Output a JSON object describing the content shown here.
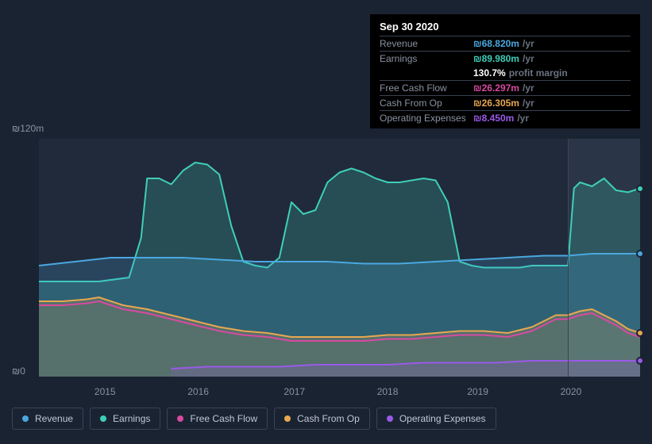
{
  "tooltip": {
    "date": "Sep 30 2020",
    "rows": [
      {
        "label": "Revenue",
        "value": "₪68.820m",
        "unit": "/yr",
        "color": "#4aa8e0",
        "border": true
      },
      {
        "label": "Earnings",
        "value": "₪89.980m",
        "unit": "/yr",
        "color": "#3ecfb8",
        "border": true
      },
      {
        "label": "",
        "value": "130.7%",
        "unit": "profit margin",
        "color": "#ffffff",
        "border": false
      },
      {
        "label": "Free Cash Flow",
        "value": "₪26.297m",
        "unit": "/yr",
        "color": "#d84aa0",
        "border": true
      },
      {
        "label": "Cash From Op",
        "value": "₪26.305m",
        "unit": "/yr",
        "color": "#e8a850",
        "border": true
      },
      {
        "label": "Operating Expenses",
        "value": "₪8.450m",
        "unit": "/yr",
        "color": "#9a5ae8",
        "border": true
      }
    ]
  },
  "chart": {
    "type": "area",
    "background_color": "#212a3a",
    "future_band_color": "#2a3648",
    "future_band_start_pct": 88,
    "y_axis": {
      "min": 0,
      "max": 120,
      "top_label": "₪120m",
      "bottom_label": "₪0",
      "label_color": "#8a92a2",
      "label_fontsize": 12
    },
    "x_axis": {
      "ticks": [
        {
          "label": "2015",
          "pos_pct": 11
        },
        {
          "label": "2016",
          "pos_pct": 26.5
        },
        {
          "label": "2017",
          "pos_pct": 42.5
        },
        {
          "label": "2018",
          "pos_pct": 58
        },
        {
          "label": "2019",
          "pos_pct": 73
        },
        {
          "label": "2020",
          "pos_pct": 88.5
        }
      ],
      "label_color": "#8a92a2",
      "label_fontsize": 12
    },
    "series": [
      {
        "name": "Earnings",
        "color": "#3ecfb8",
        "fill_opacity": 0.22,
        "line_width": 2,
        "data": [
          [
            0,
            48
          ],
          [
            5,
            48
          ],
          [
            10,
            48
          ],
          [
            15,
            50
          ],
          [
            17,
            70
          ],
          [
            18,
            100
          ],
          [
            20,
            100
          ],
          [
            22,
            97
          ],
          [
            24,
            104
          ],
          [
            26,
            108
          ],
          [
            28,
            107
          ],
          [
            30,
            102
          ],
          [
            32,
            76
          ],
          [
            34,
            58
          ],
          [
            36,
            56
          ],
          [
            38,
            55
          ],
          [
            40,
            60
          ],
          [
            42,
            88
          ],
          [
            44,
            82
          ],
          [
            46,
            84
          ],
          [
            48,
            98
          ],
          [
            50,
            103
          ],
          [
            52,
            105
          ],
          [
            54,
            103
          ],
          [
            56,
            100
          ],
          [
            58,
            98
          ],
          [
            60,
            98
          ],
          [
            62,
            99
          ],
          [
            64,
            100
          ],
          [
            66,
            99
          ],
          [
            68,
            88
          ],
          [
            70,
            58
          ],
          [
            72,
            56
          ],
          [
            74,
            55
          ],
          [
            76,
            55
          ],
          [
            78,
            55
          ],
          [
            80,
            55
          ],
          [
            82,
            56
          ],
          [
            84,
            56
          ],
          [
            86,
            56
          ],
          [
            88,
            56
          ],
          [
            89,
            95
          ],
          [
            90,
            98
          ],
          [
            92,
            96
          ],
          [
            94,
            100
          ],
          [
            96,
            94
          ],
          [
            98,
            93
          ],
          [
            100,
            95
          ]
        ],
        "marker_end": {
          "x_pct": 100,
          "y_val": 95
        }
      },
      {
        "name": "Revenue",
        "color": "#4aa8e0",
        "fill_opacity": 0.22,
        "line_width": 2,
        "data": [
          [
            0,
            56
          ],
          [
            6,
            58
          ],
          [
            12,
            60
          ],
          [
            18,
            60
          ],
          [
            24,
            60
          ],
          [
            30,
            59
          ],
          [
            36,
            58
          ],
          [
            42,
            58
          ],
          [
            48,
            58
          ],
          [
            54,
            57
          ],
          [
            60,
            57
          ],
          [
            66,
            58
          ],
          [
            72,
            59
          ],
          [
            78,
            60
          ],
          [
            84,
            61
          ],
          [
            88,
            61
          ],
          [
            92,
            62
          ],
          [
            96,
            62
          ],
          [
            100,
            62
          ]
        ],
        "marker_end": {
          "x_pct": 100,
          "y_val": 62
        }
      },
      {
        "name": "Cash From Op",
        "color": "#e8a850",
        "fill_opacity": 0.22,
        "line_width": 2,
        "data": [
          [
            0,
            38
          ],
          [
            4,
            38
          ],
          [
            8,
            39
          ],
          [
            10,
            40
          ],
          [
            14,
            36
          ],
          [
            18,
            34
          ],
          [
            22,
            31
          ],
          [
            26,
            28
          ],
          [
            30,
            25
          ],
          [
            34,
            23
          ],
          [
            38,
            22
          ],
          [
            42,
            20
          ],
          [
            46,
            20
          ],
          [
            50,
            20
          ],
          [
            54,
            20
          ],
          [
            58,
            21
          ],
          [
            62,
            21
          ],
          [
            66,
            22
          ],
          [
            70,
            23
          ],
          [
            74,
            23
          ],
          [
            78,
            22
          ],
          [
            82,
            25
          ],
          [
            86,
            31
          ],
          [
            88,
            31
          ],
          [
            90,
            33
          ],
          [
            92,
            34
          ],
          [
            94,
            31
          ],
          [
            96,
            28
          ],
          [
            98,
            24
          ],
          [
            100,
            22
          ]
        ],
        "marker_end": {
          "x_pct": 100,
          "y_val": 22
        }
      },
      {
        "name": "Free Cash Flow",
        "color": "#d84aa0",
        "fill_opacity": 0,
        "line_width": 2,
        "start_x": 0,
        "data": [
          [
            0,
            36
          ],
          [
            4,
            36
          ],
          [
            8,
            37
          ],
          [
            10,
            38
          ],
          [
            14,
            34
          ],
          [
            18,
            32
          ],
          [
            22,
            29
          ],
          [
            26,
            26
          ],
          [
            30,
            23
          ],
          [
            34,
            21
          ],
          [
            38,
            20
          ],
          [
            42,
            18
          ],
          [
            46,
            18
          ],
          [
            50,
            18
          ],
          [
            54,
            18
          ],
          [
            58,
            19
          ],
          [
            62,
            19
          ],
          [
            66,
            20
          ],
          [
            70,
            21
          ],
          [
            74,
            21
          ],
          [
            78,
            20
          ],
          [
            82,
            23
          ],
          [
            86,
            29
          ],
          [
            88,
            29
          ],
          [
            90,
            31
          ],
          [
            92,
            32
          ],
          [
            94,
            29
          ],
          [
            96,
            26
          ],
          [
            98,
            22
          ],
          [
            100,
            20
          ]
        ]
      },
      {
        "name": "Operating Expenses",
        "color": "#9a5ae8",
        "fill_opacity": 0.2,
        "line_width": 2,
        "start_x": 22,
        "data": [
          [
            22,
            4
          ],
          [
            28,
            5
          ],
          [
            34,
            5
          ],
          [
            40,
            5
          ],
          [
            46,
            6
          ],
          [
            52,
            6
          ],
          [
            58,
            6
          ],
          [
            64,
            7
          ],
          [
            70,
            7
          ],
          [
            76,
            7
          ],
          [
            82,
            8
          ],
          [
            88,
            8
          ],
          [
            92,
            8
          ],
          [
            96,
            8
          ],
          [
            100,
            8
          ]
        ],
        "marker_end": {
          "x_pct": 100,
          "y_val": 8
        }
      }
    ]
  },
  "legend": {
    "items": [
      {
        "label": "Revenue",
        "color": "#4aa8e0"
      },
      {
        "label": "Earnings",
        "color": "#3ecfb8"
      },
      {
        "label": "Free Cash Flow",
        "color": "#d84aa0"
      },
      {
        "label": "Cash From Op",
        "color": "#e8a850"
      },
      {
        "label": "Operating Expenses",
        "color": "#9a5ae8"
      }
    ],
    "border_color": "#3a4454",
    "text_color": "#c0c8d8",
    "fontsize": 12
  }
}
